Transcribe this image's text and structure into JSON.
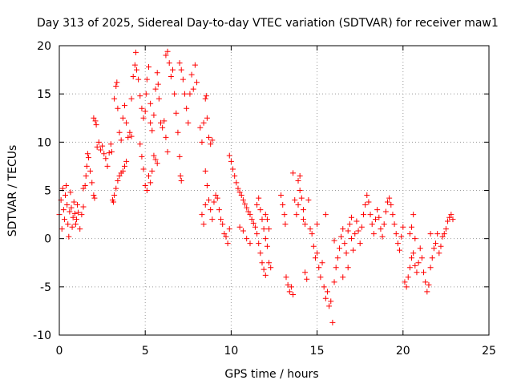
{
  "chart_data": {
    "type": "scatter",
    "title": "Day 313 of 2025, Sidereal Day-to-day VTEC variation (SDTVAR) for receiver maw1",
    "xlabel": "GPS time / hours",
    "ylabel": "SDTVAR / TECUs",
    "xlim": [
      0,
      25
    ],
    "ylim": [
      -10,
      20
    ],
    "x_ticks": [
      0,
      5,
      10,
      15,
      20,
      25
    ],
    "y_ticks": [
      -10,
      -5,
      0,
      5,
      10,
      15,
      20
    ],
    "grid": true,
    "marker": "+",
    "series": [
      {
        "name": "SDTVAR",
        "color": "#ff0000",
        "points": [
          [
            0.0,
            2.5
          ],
          [
            0.1,
            4.0
          ],
          [
            0.15,
            1.0
          ],
          [
            0.2,
            5.2
          ],
          [
            0.25,
            3.0
          ],
          [
            0.3,
            2.0
          ],
          [
            0.35,
            4.5
          ],
          [
            0.4,
            5.5
          ],
          [
            0.45,
            3.5
          ],
          [
            0.5,
            1.5
          ],
          [
            0.55,
            0.2
          ],
          [
            0.6,
            2.8
          ],
          [
            0.65,
            4.8
          ],
          [
            0.7,
            3.2
          ],
          [
            0.75,
            1.2
          ],
          [
            0.8,
            2.2
          ],
          [
            0.85,
            3.8
          ],
          [
            0.9,
            2.6
          ],
          [
            0.95,
            1.5
          ],
          [
            1.0,
            2.0
          ],
          [
            1.05,
            3.5
          ],
          [
            1.1,
            2.7
          ],
          [
            1.2,
            1.0
          ],
          [
            1.3,
            2.5
          ],
          [
            1.4,
            3.3
          ],
          [
            1.4,
            5.2
          ],
          [
            1.5,
            5.5
          ],
          [
            1.55,
            6.5
          ],
          [
            1.6,
            7.5
          ],
          [
            1.65,
            8.8
          ],
          [
            1.7,
            8.4
          ],
          [
            1.8,
            7.0
          ],
          [
            1.9,
            5.8
          ],
          [
            2.0,
            4.5
          ],
          [
            2.05,
            4.2
          ],
          [
            2.0,
            12.5
          ],
          [
            2.1,
            12.2
          ],
          [
            2.15,
            11.8
          ],
          [
            2.2,
            9.5
          ],
          [
            2.3,
            10.0
          ],
          [
            2.4,
            9.2
          ],
          [
            2.5,
            9.6
          ],
          [
            2.6,
            8.8
          ],
          [
            2.7,
            8.3
          ],
          [
            2.8,
            7.5
          ],
          [
            2.9,
            8.9
          ],
          [
            3.0,
            9.8
          ],
          [
            3.05,
            9.0
          ],
          [
            3.1,
            4.0
          ],
          [
            3.15,
            3.8
          ],
          [
            3.2,
            4.5
          ],
          [
            3.3,
            5.2
          ],
          [
            3.4,
            6.0
          ],
          [
            3.5,
            6.5
          ],
          [
            3.6,
            6.8
          ],
          [
            3.7,
            7.0
          ],
          [
            3.8,
            7.5
          ],
          [
            3.9,
            8.0
          ],
          [
            3.2,
            14.5
          ],
          [
            3.3,
            15.8
          ],
          [
            3.35,
            16.2
          ],
          [
            3.4,
            13.5
          ],
          [
            3.5,
            11.0
          ],
          [
            3.6,
            10.2
          ],
          [
            3.7,
            12.5
          ],
          [
            3.8,
            13.8
          ],
          [
            3.9,
            12.0
          ],
          [
            4.0,
            10.5
          ],
          [
            4.1,
            11.0
          ],
          [
            4.2,
            10.6
          ],
          [
            4.2,
            14.5
          ],
          [
            4.3,
            16.8
          ],
          [
            4.4,
            18.0
          ],
          [
            4.45,
            19.3
          ],
          [
            4.5,
            17.5
          ],
          [
            4.6,
            16.5
          ],
          [
            4.7,
            14.8
          ],
          [
            4.8,
            13.5
          ],
          [
            4.9,
            12.5
          ],
          [
            5.0,
            13.2
          ],
          [
            5.05,
            15.0
          ],
          [
            5.1,
            16.5
          ],
          [
            5.2,
            17.8
          ],
          [
            5.3,
            14.0
          ],
          [
            4.7,
            9.8
          ],
          [
            4.8,
            8.5
          ],
          [
            4.9,
            7.2
          ],
          [
            5.0,
            5.5
          ],
          [
            5.1,
            5.0
          ],
          [
            5.2,
            6.5
          ],
          [
            5.3,
            5.8
          ],
          [
            5.4,
            7.0
          ],
          [
            5.5,
            8.6
          ],
          [
            5.6,
            8.2
          ],
          [
            5.7,
            7.8
          ],
          [
            5.3,
            12.0
          ],
          [
            5.4,
            11.2
          ],
          [
            5.5,
            12.8
          ],
          [
            5.6,
            15.5
          ],
          [
            5.7,
            17.2
          ],
          [
            5.75,
            16.0
          ],
          [
            5.8,
            14.5
          ],
          [
            5.9,
            12.0
          ],
          [
            6.0,
            11.5
          ],
          [
            6.1,
            12.2
          ],
          [
            6.2,
            10.5
          ],
          [
            6.3,
            9.0
          ],
          [
            6.2,
            19.0
          ],
          [
            6.3,
            19.4
          ],
          [
            6.4,
            18.2
          ],
          [
            6.5,
            16.8
          ],
          [
            6.6,
            17.5
          ],
          [
            6.7,
            15.0
          ],
          [
            6.8,
            13.0
          ],
          [
            6.9,
            11.0
          ],
          [
            7.0,
            8.5
          ],
          [
            7.05,
            6.5
          ],
          [
            7.1,
            6.0
          ],
          [
            7.0,
            18.2
          ],
          [
            7.1,
            17.5
          ],
          [
            7.2,
            16.5
          ],
          [
            7.3,
            15.0
          ],
          [
            7.4,
            13.5
          ],
          [
            7.5,
            12.0
          ],
          [
            7.6,
            15.0
          ],
          [
            7.7,
            17.0
          ],
          [
            7.8,
            15.5
          ],
          [
            7.9,
            18.0
          ],
          [
            8.0,
            16.2
          ],
          [
            8.2,
            11.5
          ],
          [
            8.3,
            10.0
          ],
          [
            8.4,
            12.0
          ],
          [
            8.5,
            14.5
          ],
          [
            8.55,
            14.8
          ],
          [
            8.6,
            12.5
          ],
          [
            8.7,
            10.5
          ],
          [
            8.8,
            9.8
          ],
          [
            8.9,
            10.2
          ],
          [
            8.5,
            7.0
          ],
          [
            8.6,
            5.5
          ],
          [
            8.7,
            4.0
          ],
          [
            8.8,
            3.0
          ],
          [
            8.4,
            1.5
          ],
          [
            8.3,
            2.5
          ],
          [
            8.5,
            3.5
          ],
          [
            8.9,
            2.0
          ],
          [
            9.0,
            3.8
          ],
          [
            9.1,
            4.5
          ],
          [
            9.2,
            4.2
          ],
          [
            9.3,
            3.0
          ],
          [
            9.4,
            2.0
          ],
          [
            9.5,
            1.5
          ],
          [
            9.6,
            0.5
          ],
          [
            9.7,
            0.2
          ],
          [
            9.8,
            -0.5
          ],
          [
            9.9,
            1.0
          ],
          [
            9.9,
            8.6
          ],
          [
            10.0,
            8.0
          ],
          [
            10.1,
            7.2
          ],
          [
            10.2,
            6.5
          ],
          [
            10.3,
            5.8
          ],
          [
            10.4,
            5.2
          ],
          [
            10.5,
            4.8
          ],
          [
            10.6,
            4.5
          ],
          [
            10.7,
            4.0
          ],
          [
            10.8,
            3.6
          ],
          [
            10.9,
            3.2
          ],
          [
            11.0,
            2.8
          ],
          [
            11.1,
            2.5
          ],
          [
            11.2,
            2.0
          ],
          [
            11.3,
            1.6
          ],
          [
            11.4,
            1.2
          ],
          [
            11.5,
            0.5
          ],
          [
            11.6,
            -0.5
          ],
          [
            11.7,
            -1.5
          ],
          [
            11.8,
            -2.5
          ],
          [
            11.9,
            -3.2
          ],
          [
            12.0,
            -3.8
          ],
          [
            11.5,
            3.5
          ],
          [
            11.6,
            4.2
          ],
          [
            11.7,
            3.0
          ],
          [
            11.8,
            2.0
          ],
          [
            11.9,
            1.0
          ],
          [
            12.0,
            0.0
          ],
          [
            12.1,
            -0.8
          ],
          [
            12.2,
            -2.5
          ],
          [
            12.3,
            -3.0
          ],
          [
            12.0,
            2.5
          ],
          [
            12.1,
            2.0
          ],
          [
            12.2,
            1.0
          ],
          [
            10.5,
            1.2
          ],
          [
            10.7,
            0.8
          ],
          [
            10.9,
            0.0
          ],
          [
            11.1,
            -0.5
          ],
          [
            12.9,
            4.5
          ],
          [
            13.0,
            3.5
          ],
          [
            13.1,
            2.5
          ],
          [
            13.15,
            1.5
          ],
          [
            13.2,
            -4.0
          ],
          [
            13.3,
            -4.8
          ],
          [
            13.4,
            -5.5
          ],
          [
            13.5,
            -5.0
          ],
          [
            13.6,
            -5.8
          ],
          [
            13.7,
            4.0
          ],
          [
            13.8,
            2.5
          ],
          [
            13.9,
            3.5
          ],
          [
            14.0,
            5.0
          ],
          [
            14.1,
            4.2
          ],
          [
            14.2,
            3.0
          ],
          [
            14.3,
            -3.5
          ],
          [
            14.4,
            -4.2
          ],
          [
            14.0,
            6.5
          ],
          [
            13.6,
            6.8
          ],
          [
            13.9,
            6.0
          ],
          [
            14.2,
            2.0
          ],
          [
            14.3,
            1.5
          ],
          [
            14.6,
            1.0
          ],
          [
            14.7,
            0.5
          ],
          [
            14.8,
            -0.8
          ],
          [
            14.9,
            -2.0
          ],
          [
            15.0,
            -1.5
          ],
          [
            15.1,
            -3.0
          ],
          [
            15.2,
            -4.0
          ],
          [
            15.3,
            -2.5
          ],
          [
            15.4,
            -5.0
          ],
          [
            15.5,
            -6.2
          ],
          [
            15.6,
            -5.5
          ],
          [
            15.7,
            -7.0
          ],
          [
            15.8,
            -6.5
          ],
          [
            15.9,
            -8.7
          ],
          [
            16.0,
            -4.5
          ],
          [
            16.1,
            -3.0
          ],
          [
            16.2,
            -2.0
          ],
          [
            16.3,
            -1.0
          ],
          [
            16.4,
            0.2
          ],
          [
            16.5,
            1.0
          ],
          [
            16.6,
            -0.5
          ],
          [
            16.7,
            -1.5
          ],
          [
            16.8,
            0.8
          ],
          [
            16.9,
            1.5
          ],
          [
            17.0,
            0.0
          ],
          [
            17.1,
            -1.2
          ],
          [
            17.2,
            0.5
          ],
          [
            17.3,
            1.8
          ],
          [
            17.4,
            0.8
          ],
          [
            17.5,
            -0.5
          ],
          [
            17.6,
            1.2
          ],
          [
            17.7,
            2.5
          ],
          [
            17.8,
            3.5
          ],
          [
            17.9,
            4.5
          ],
          [
            18.0,
            3.8
          ],
          [
            18.1,
            2.5
          ],
          [
            18.2,
            1.5
          ],
          [
            18.3,
            0.5
          ],
          [
            18.4,
            2.0
          ],
          [
            18.5,
            3.0
          ],
          [
            18.6,
            2.2
          ],
          [
            18.7,
            1.0
          ],
          [
            18.8,
            0.2
          ],
          [
            18.9,
            1.5
          ],
          [
            19.0,
            2.8
          ],
          [
            19.1,
            3.8
          ],
          [
            19.2,
            4.2
          ],
          [
            19.3,
            3.5
          ],
          [
            19.4,
            2.5
          ],
          [
            19.5,
            1.5
          ],
          [
            19.6,
            0.5
          ],
          [
            19.7,
            -0.5
          ],
          [
            19.8,
            -1.2
          ],
          [
            19.9,
            0.2
          ],
          [
            20.0,
            1.2
          ],
          [
            14.5,
            4.0
          ],
          [
            15.0,
            1.5
          ],
          [
            15.5,
            2.5
          ],
          [
            16.0,
            -0.2
          ],
          [
            17.0,
            2.2
          ],
          [
            16.5,
            -4.0
          ],
          [
            16.8,
            -3.0
          ],
          [
            20.1,
            -4.5
          ],
          [
            20.2,
            -5.0
          ],
          [
            20.3,
            -4.0
          ],
          [
            20.4,
            -3.0
          ],
          [
            20.5,
            -2.0
          ],
          [
            20.6,
            -1.5
          ],
          [
            20.7,
            -2.8
          ],
          [
            20.8,
            -3.5
          ],
          [
            20.9,
            -2.5
          ],
          [
            21.0,
            -1.0
          ],
          [
            21.1,
            -2.0
          ],
          [
            21.2,
            -3.5
          ],
          [
            21.3,
            -4.5
          ],
          [
            21.4,
            -5.5
          ],
          [
            21.5,
            -4.8
          ],
          [
            21.6,
            -3.0
          ],
          [
            21.7,
            -2.0
          ],
          [
            21.8,
            -1.0
          ],
          [
            21.9,
            -0.5
          ],
          [
            22.0,
            0.5
          ],
          [
            22.1,
            -1.5
          ],
          [
            22.2,
            -0.8
          ],
          [
            22.3,
            0.2
          ],
          [
            22.4,
            0.5
          ],
          [
            22.5,
            1.0
          ],
          [
            22.6,
            1.8
          ],
          [
            22.7,
            2.2
          ],
          [
            22.8,
            2.5
          ],
          [
            22.9,
            2.0
          ],
          [
            20.4,
            0.5
          ],
          [
            20.5,
            1.2
          ],
          [
            20.6,
            2.5
          ],
          [
            20.7,
            0.0
          ],
          [
            21.6,
            0.5
          ]
        ]
      }
    ]
  }
}
